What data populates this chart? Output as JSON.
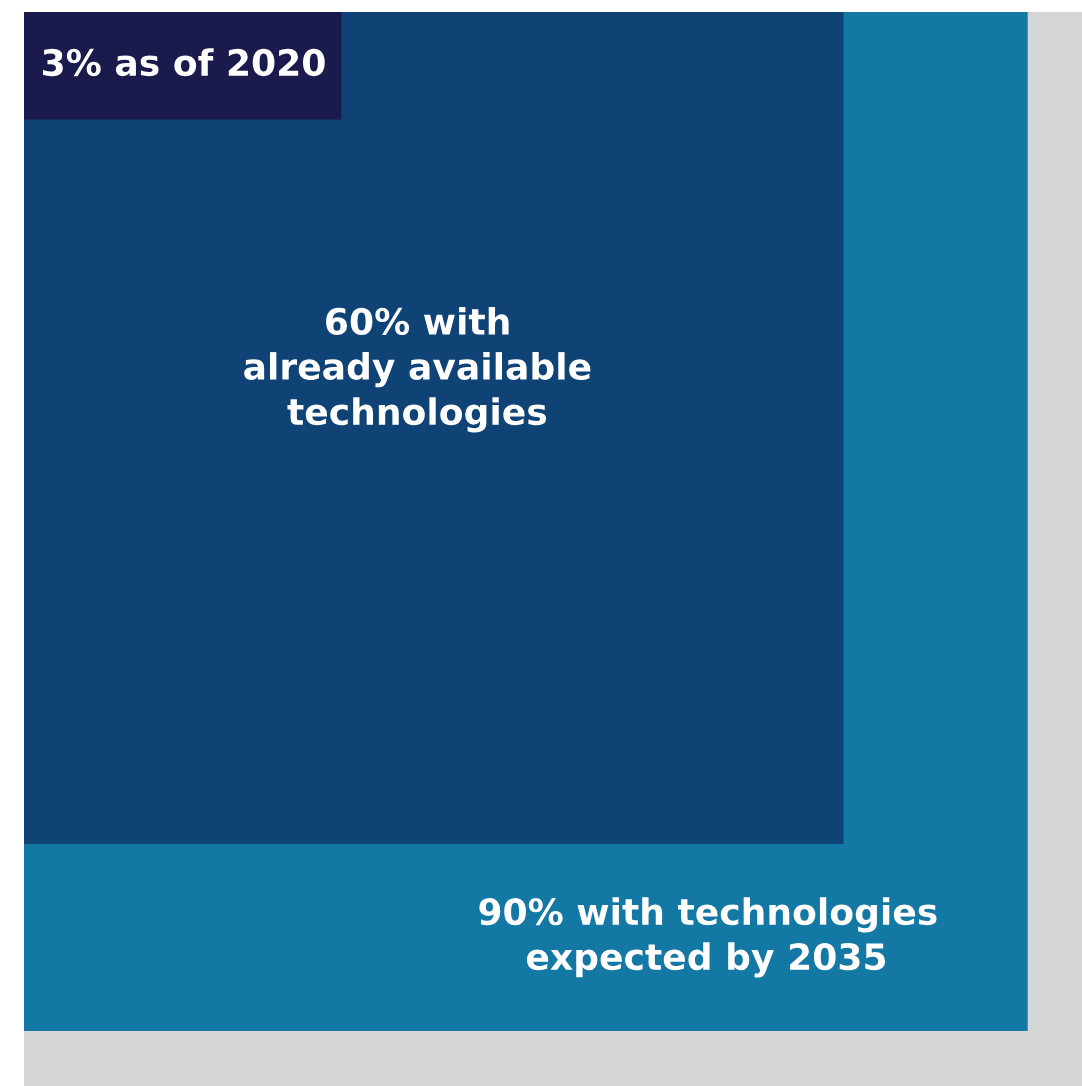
{
  "chart_data": {
    "type": "other",
    "categories": [
      "with technologies\nexpected by 2035",
      "with\nalready available\ntechnologies",
      "as of 2020"
    ],
    "values": [
      90,
      60,
      3
    ],
    "value_labels": [
      "90%",
      "60%",
      "3%"
    ],
    "colors": [
      "#1478a5",
      "#0f4275",
      "#1b1a4c"
    ]
  }
}
